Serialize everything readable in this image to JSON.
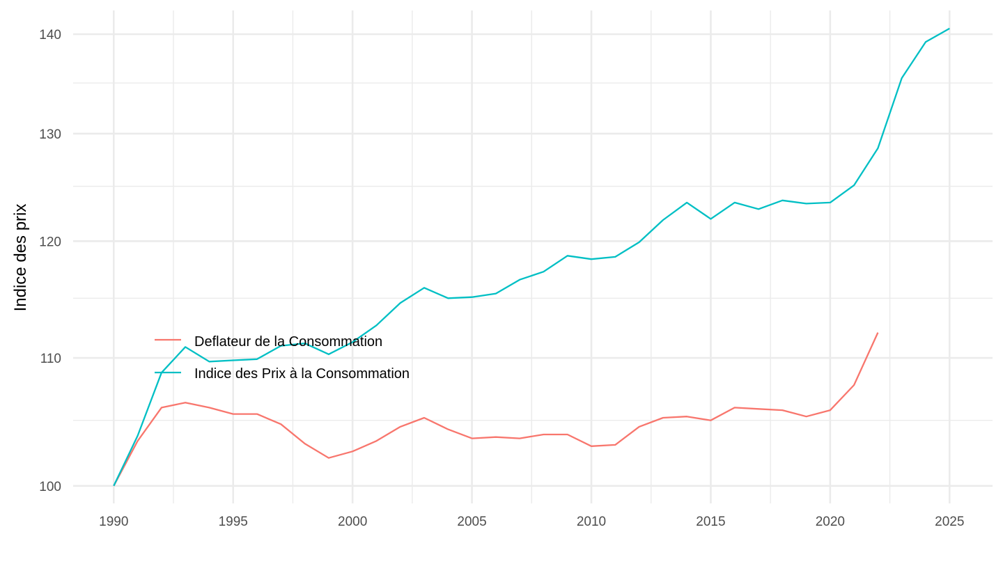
{
  "chart_data": {
    "type": "line",
    "title": "",
    "xlabel": "",
    "ylabel": "Indice des prix",
    "y_scale": "log",
    "xlim": [
      1988.3,
      2026.8
    ],
    "ylim": [
      98.7,
      142.5
    ],
    "grid": true,
    "x_ticks": [
      1990,
      1995,
      2000,
      2005,
      2010,
      2015,
      2020,
      2025
    ],
    "x_tick_labels": [
      "1990",
      "1995",
      "2000",
      "2005",
      "2010",
      "2015",
      "2020",
      "2025"
    ],
    "x_minor_ticks": [
      1992.5,
      1997.5,
      2002.5,
      2007.5,
      2012.5,
      2017.5,
      2022.5
    ],
    "y_ticks": [
      100,
      110,
      120,
      130,
      140
    ],
    "y_tick_labels": [
      "100",
      "110",
      "120",
      "130",
      "140"
    ],
    "y_minor_ticks": [
      105,
      115,
      125,
      135
    ],
    "legend_position": "left-center inside plot",
    "series": [
      {
        "name": "Deflateur de la Consommation",
        "color": "#F8766D",
        "x": [
          1990,
          1991,
          1992,
          1993,
          1994,
          1995,
          1996,
          1997,
          1998,
          1999,
          2000,
          2001,
          2002,
          2003,
          2004,
          2005,
          2006,
          2007,
          2008,
          2009,
          2010,
          2011,
          2012,
          2013,
          2014,
          2015,
          2016,
          2017,
          2018,
          2019,
          2020,
          2021,
          2022
        ],
        "values": [
          100.0,
          103.4,
          106.0,
          106.4,
          106.0,
          105.5,
          105.5,
          104.7,
          103.2,
          102.1,
          102.6,
          103.4,
          104.5,
          105.2,
          104.3,
          103.6,
          103.7,
          103.6,
          103.9,
          103.9,
          103.0,
          103.1,
          104.5,
          105.2,
          105.3,
          105.0,
          106.0,
          105.9,
          105.8,
          105.3,
          105.8,
          107.8,
          112.1
        ]
      },
      {
        "name": "Indice des Prix à la Consommation",
        "color": "#00BFC4",
        "x": [
          1990,
          1991,
          1992,
          1993,
          1994,
          1995,
          1996,
          1997,
          1998,
          1999,
          2000,
          2001,
          2002,
          2003,
          2004,
          2005,
          2006,
          2007,
          2008,
          2009,
          2010,
          2011,
          2012,
          2013,
          2014,
          2015,
          2016,
          2017,
          2018,
          2019,
          2020,
          2021,
          2022,
          2023,
          2024,
          2025
        ],
        "values": [
          100.0,
          103.8,
          108.8,
          110.9,
          109.7,
          109.8,
          109.9,
          111.0,
          111.2,
          110.3,
          111.3,
          112.7,
          114.6,
          115.9,
          115.0,
          115.1,
          115.4,
          116.6,
          117.3,
          118.7,
          118.4,
          118.6,
          119.9,
          121.9,
          123.5,
          122.0,
          123.5,
          122.9,
          123.7,
          123.4,
          123.5,
          125.1,
          128.6,
          135.5,
          139.2,
          140.6
        ]
      }
    ]
  }
}
